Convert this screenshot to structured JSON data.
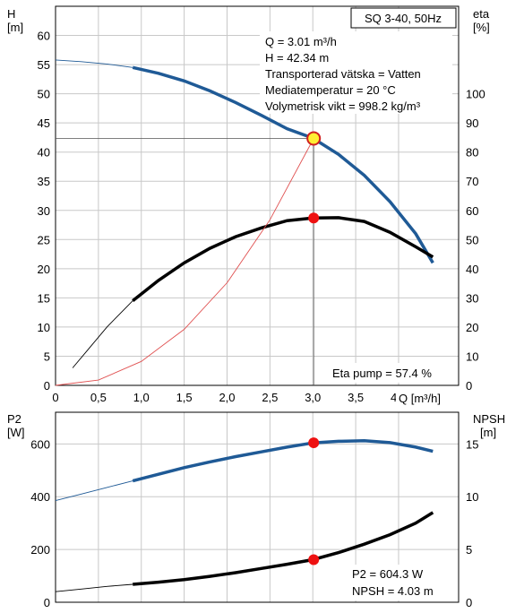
{
  "chart_data": [
    {
      "type": "line",
      "title": "SQ 3-40, 50Hz",
      "xlabel": "Q [m³/h]",
      "ylabel_left": [
        "H",
        "[m]"
      ],
      "ylabel_right": [
        "eta",
        "[%]"
      ],
      "xlim": [
        0,
        4.7
      ],
      "ylim_left": [
        0,
        65
      ],
      "ylim_right": [
        0,
        130
      ],
      "x_ticks": [
        "0",
        "0,5",
        "1,0",
        "1,5",
        "2,0",
        "2,5",
        "3,0",
        "3,5",
        "4,0"
      ],
      "y_ticks_left": [
        "0",
        "5",
        "10",
        "15",
        "20",
        "25",
        "30",
        "35",
        "40",
        "45",
        "50",
        "55",
        "60"
      ],
      "y_ticks_right": [
        "0",
        "10",
        "20",
        "30",
        "40",
        "50",
        "60",
        "70",
        "80",
        "90",
        "100"
      ],
      "grid": true,
      "info_box": [
        "Q = 3.01 m³/h",
        "H = 42.34 m",
        "Transporterad vätska = Vatten",
        "Mediatemperatur = 20 °C",
        "Volymetrisk vikt = 998.2 kg/m³"
      ],
      "annotation": "Eta pump = 57.4 %",
      "operating_point": {
        "x": 3.01,
        "H": 42.34,
        "eta": 57.4
      },
      "series": [
        {
          "name": "H",
          "axis": "left",
          "color": "#1f5a96",
          "x": [
            0,
            0.3,
            0.6,
            0.9,
            1.2,
            1.5,
            1.8,
            2.1,
            2.4,
            2.7,
            3.0,
            3.3,
            3.6,
            3.9,
            4.2,
            4.4
          ],
          "y": [
            55.8,
            55.5,
            55.1,
            54.5,
            53.5,
            52.2,
            50.5,
            48.5,
            46.3,
            44.0,
            42.4,
            39.6,
            36.0,
            31.5,
            26.0,
            21.0
          ],
          "bold_from_x": 0.9
        },
        {
          "name": "eta",
          "axis": "right",
          "color": "#000000",
          "x": [
            0.2,
            0.4,
            0.6,
            0.9,
            1.2,
            1.5,
            1.8,
            2.1,
            2.4,
            2.7,
            3.0,
            3.3,
            3.6,
            3.9,
            4.2,
            4.4
          ],
          "y": [
            6,
            13,
            20,
            29,
            36,
            42,
            47,
            51,
            54,
            56.5,
            57.4,
            57.5,
            56.2,
            52.5,
            47.5,
            44
          ],
          "bold_from_x": 0.9
        },
        {
          "name": "system",
          "axis": "left",
          "color": "#e05050",
          "x": [
            0,
            0.5,
            1.0,
            1.5,
            2.0,
            2.5,
            3.01
          ],
          "y": [
            0,
            0.9,
            4.1,
            9.6,
            17.6,
            28.4,
            42.34
          ]
        }
      ]
    },
    {
      "type": "line",
      "xlabel": "",
      "ylabel_left": [
        "P2",
        "[W]"
      ],
      "ylabel_right": [
        "NPSH",
        "[m]"
      ],
      "xlim": [
        0,
        4.7
      ],
      "ylim_left": [
        0,
        720
      ],
      "ylim_right": [
        0,
        18
      ],
      "y_ticks_left": [
        "0",
        "200",
        "400",
        "600"
      ],
      "y_ticks_right": [
        "0",
        "5",
        "10",
        "15"
      ],
      "grid": true,
      "annotation": [
        "P2 = 604.3 W",
        "NPSH = 4.03 m"
      ],
      "operating_point": {
        "x": 3.01,
        "P2": 604.3,
        "NPSH": 4.03
      },
      "series": [
        {
          "name": "P2",
          "axis": "left",
          "color": "#1f5a96",
          "x": [
            0,
            0.3,
            0.6,
            0.9,
            1.2,
            1.5,
            1.8,
            2.1,
            2.4,
            2.7,
            3.0,
            3.3,
            3.6,
            3.9,
            4.2,
            4.4
          ],
          "y": [
            385,
            410,
            435,
            460,
            485,
            510,
            532,
            552,
            570,
            588,
            604,
            610,
            612,
            605,
            588,
            572
          ],
          "bold_from_x": 0.9
        },
        {
          "name": "NPSH",
          "axis": "right",
          "color": "#000000",
          "x": [
            0,
            0.3,
            0.6,
            0.9,
            1.2,
            1.5,
            1.8,
            2.1,
            2.4,
            2.7,
            3.0,
            3.3,
            3.6,
            3.9,
            4.2,
            4.4
          ],
          "y": [
            1.0,
            1.25,
            1.5,
            1.7,
            1.9,
            2.15,
            2.45,
            2.8,
            3.2,
            3.6,
            4.03,
            4.7,
            5.5,
            6.4,
            7.5,
            8.5
          ],
          "bold_from_x": 0.9
        }
      ]
    }
  ]
}
